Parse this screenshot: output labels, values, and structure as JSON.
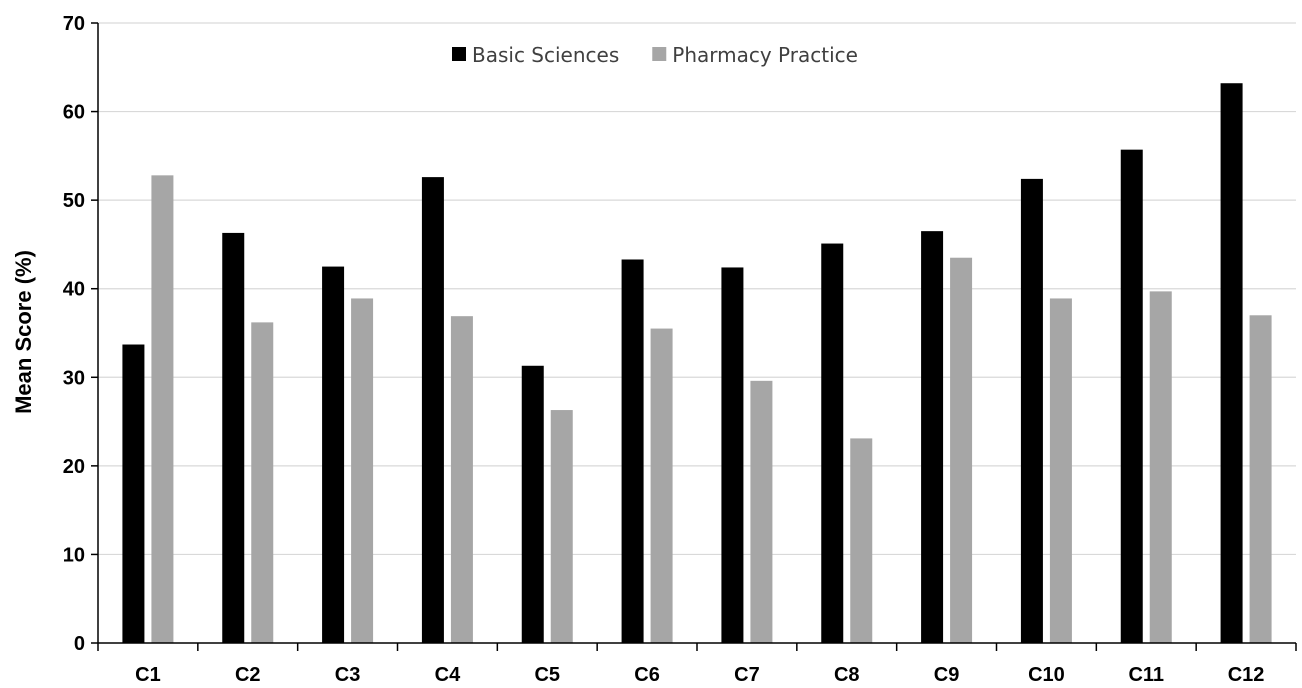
{
  "chart_data": {
    "type": "bar",
    "title": "",
    "xlabel": "",
    "ylabel": "Mean Score (%)",
    "ylim": [
      0,
      70
    ],
    "yticks": [
      0,
      10,
      20,
      30,
      40,
      50,
      60,
      70
    ],
    "grid": true,
    "legend_position": "top-center",
    "categories": [
      "C1",
      "C2",
      "C3",
      "C4",
      "C5",
      "C6",
      "C7",
      "C8",
      "C9",
      "C10",
      "C11",
      "C12"
    ],
    "series": [
      {
        "name": "Basic Sciences",
        "color": "#000000",
        "values": [
          33.7,
          46.3,
          42.5,
          52.6,
          31.3,
          43.3,
          42.4,
          45.1,
          46.5,
          52.4,
          55.7,
          63.2
        ]
      },
      {
        "name": "Pharmacy Practice",
        "color": "#a6a6a6",
        "values": [
          52.8,
          36.2,
          38.9,
          36.9,
          26.3,
          35.5,
          29.6,
          23.1,
          43.5,
          38.9,
          39.7,
          37.0
        ]
      }
    ]
  }
}
